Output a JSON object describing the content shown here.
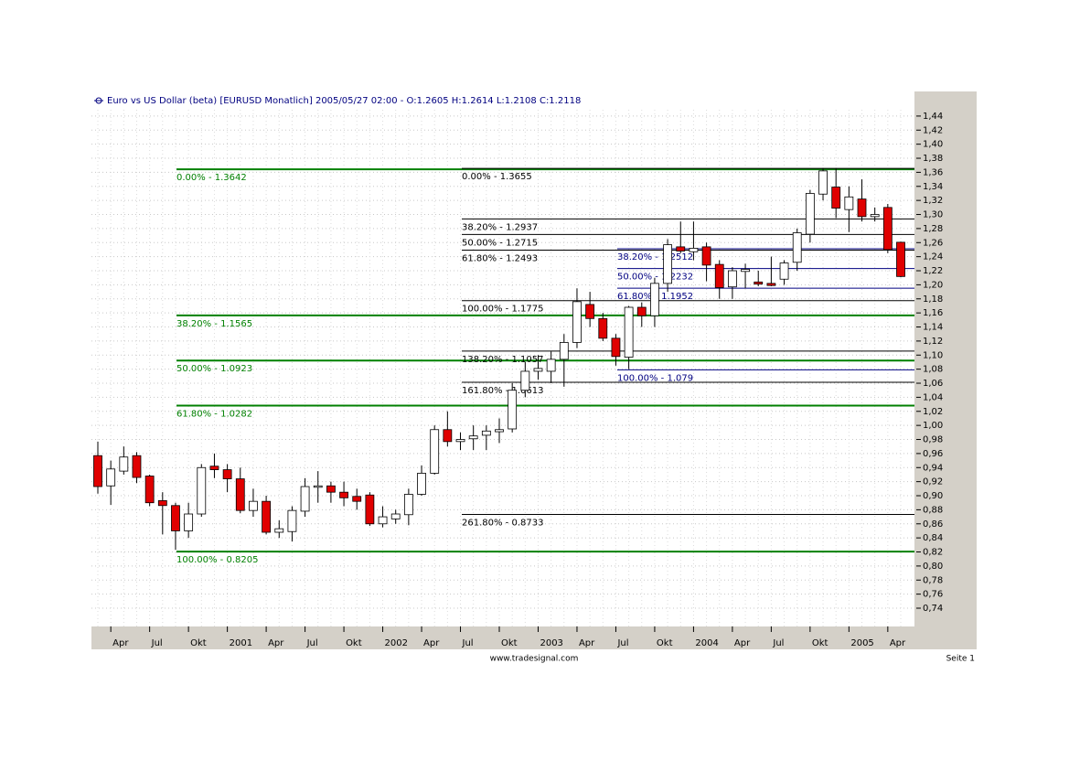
{
  "chart_data": {
    "type": "candlestick",
    "title": "Euro vs US Dollar (beta) [EURUSD  Monatlich] 2005/05/27 02:00 - O:1.2605 H:1.2614 L:1.2108 C:1.2118",
    "categories": [
      null,
      "Apr",
      null,
      null,
      "Jul",
      null,
      null,
      "Okt",
      null,
      null,
      "2001",
      null,
      null,
      "Apr",
      null,
      null,
      "Jul",
      null,
      null,
      "Okt",
      null,
      null,
      "2002",
      null,
      null,
      "Apr",
      null,
      null,
      "Jul",
      null,
      null,
      "Okt",
      null,
      null,
      "2003",
      null,
      null,
      "Apr",
      null,
      null,
      "Jul",
      null,
      null,
      "Okt",
      null,
      null,
      "2004",
      null,
      null,
      "Apr",
      null,
      null,
      "Jul",
      null,
      null,
      "Okt",
      null,
      null,
      "2005",
      null,
      null,
      "Apr",
      null
    ],
    "open": [
      0.957,
      0.914,
      0.935,
      0.957,
      0.928,
      0.893,
      0.886,
      0.85,
      0.874,
      0.942,
      0.937,
      0.924,
      0.879,
      0.892,
      0.848,
      0.849,
      0.878,
      0.912,
      0.914,
      0.905,
      0.899,
      0.901,
      0.86,
      0.867,
      0.873,
      0.902,
      0.932,
      0.994,
      0.977,
      0.981,
      0.986,
      0.991,
      0.995,
      1.05,
      1.077,
      1.077,
      1.094,
      1.118,
      1.172,
      1.152,
      1.124,
      1.097,
      1.168,
      1.156,
      1.202,
      1.254,
      1.247,
      1.254,
      1.229,
      1.197,
      1.219,
      1.204,
      1.202,
      1.208,
      1.232,
      1.272,
      1.329,
      1.339,
      1.307,
      1.322,
      1.297,
      1.31,
      1.2605
    ],
    "high": [
      0.977,
      0.95,
      0.97,
      0.962,
      0.93,
      0.905,
      0.89,
      0.89,
      0.945,
      0.96,
      0.945,
      0.94,
      0.91,
      0.9,
      0.865,
      0.885,
      0.925,
      0.935,
      0.92,
      0.92,
      0.91,
      0.905,
      0.885,
      0.88,
      0.91,
      0.943,
      1.0,
      1.02,
      0.99,
      1.0,
      1.0,
      1.01,
      1.06,
      1.09,
      1.1,
      1.105,
      1.13,
      1.195,
      1.19,
      1.16,
      1.13,
      1.17,
      1.175,
      1.21,
      1.265,
      1.29,
      1.29,
      1.26,
      1.235,
      1.225,
      1.23,
      1.22,
      1.24,
      1.235,
      1.28,
      1.335,
      1.366,
      1.366,
      1.34,
      1.35,
      1.31,
      1.315,
      1.2614
    ],
    "low": [
      0.903,
      0.887,
      0.93,
      0.918,
      0.885,
      0.845,
      0.823,
      0.84,
      0.87,
      0.925,
      0.905,
      0.875,
      0.87,
      0.845,
      0.84,
      0.835,
      0.87,
      0.89,
      0.89,
      0.885,
      0.88,
      0.857,
      0.855,
      0.86,
      0.858,
      0.9,
      0.93,
      0.97,
      0.965,
      0.965,
      0.965,
      0.975,
      0.99,
      1.04,
      1.065,
      1.06,
      1.055,
      1.11,
      1.14,
      1.12,
      1.085,
      1.08,
      1.14,
      1.14,
      1.19,
      1.245,
      1.235,
      1.205,
      1.18,
      1.18,
      1.195,
      1.198,
      1.198,
      1.2,
      1.22,
      1.26,
      1.32,
      1.295,
      1.275,
      1.29,
      1.29,
      1.245,
      1.2108
    ],
    "close": [
      0.913,
      0.938,
      0.955,
      0.926,
      0.89,
      0.886,
      0.85,
      0.874,
      0.94,
      0.937,
      0.924,
      0.879,
      0.892,
      0.848,
      0.853,
      0.879,
      0.913,
      0.914,
      0.905,
      0.897,
      0.892,
      0.86,
      0.87,
      0.874,
      0.902,
      0.932,
      0.994,
      0.977,
      0.98,
      0.985,
      0.992,
      0.994,
      1.05,
      1.077,
      1.081,
      1.094,
      1.118,
      1.176,
      1.152,
      1.124,
      1.098,
      1.168,
      1.156,
      1.202,
      1.257,
      1.248,
      1.252,
      1.228,
      1.196,
      1.22,
      1.222,
      1.201,
      1.199,
      1.231,
      1.274,
      1.33,
      1.362,
      1.309,
      1.325,
      1.297,
      1.3,
      1.25,
      1.2118
    ],
    "up_color": "#ffffff",
    "down_color": "#e00000",
    "ylim": [
      0.714,
      1.475
    ],
    "yticks": [
      {
        "value": 1.44,
        "label": "1,44"
      },
      {
        "value": 1.42,
        "label": "1,42"
      },
      {
        "value": 1.4,
        "label": "1,40"
      },
      {
        "value": 1.38,
        "label": "1,38"
      },
      {
        "value": 1.36,
        "label": "1,36"
      },
      {
        "value": 1.34,
        "label": "1,34"
      },
      {
        "value": 1.32,
        "label": "1,32"
      },
      {
        "value": 1.3,
        "label": "1,30"
      },
      {
        "value": 1.28,
        "label": "1,28"
      },
      {
        "value": 1.26,
        "label": "1,26"
      },
      {
        "value": 1.24,
        "label": "1,24"
      },
      {
        "value": 1.22,
        "label": "1,22"
      },
      {
        "value": 1.2,
        "label": "1,20"
      },
      {
        "value": 1.18,
        "label": "1,18"
      },
      {
        "value": 1.16,
        "label": "1,16"
      },
      {
        "value": 1.14,
        "label": "1,14"
      },
      {
        "value": 1.12,
        "label": "1,12"
      },
      {
        "value": 1.1,
        "label": "1,10"
      },
      {
        "value": 1.08,
        "label": "1,08"
      },
      {
        "value": 1.06,
        "label": "1,06"
      },
      {
        "value": 1.04,
        "label": "1,04"
      },
      {
        "value": 1.02,
        "label": "1,02"
      },
      {
        "value": 1.0,
        "label": "1,00"
      },
      {
        "value": 0.98,
        "label": "0,98"
      },
      {
        "value": 0.96,
        "label": "0,96"
      },
      {
        "value": 0.94,
        "label": "0,94"
      },
      {
        "value": 0.92,
        "label": "0,92"
      },
      {
        "value": 0.9,
        "label": "0,90"
      },
      {
        "value": 0.88,
        "label": "0,88"
      },
      {
        "value": 0.86,
        "label": "0,86"
      },
      {
        "value": 0.84,
        "label": "0,84"
      },
      {
        "value": 0.82,
        "label": "0,82"
      },
      {
        "value": 0.8,
        "label": "0,80"
      },
      {
        "value": 0.78,
        "label": "0,78"
      },
      {
        "value": 0.76,
        "label": "0,76"
      },
      {
        "value": 0.74,
        "label": "0,74"
      }
    ],
    "grid": true,
    "fibonacci": [
      {
        "color": "#008000",
        "values": [
          1.3642,
          1.1565,
          1.0923,
          1.0282,
          0.8205
        ],
        "value_labels": [
          "0.00% - 1.3642",
          "38.20% - 1.1565",
          "50.00% - 1.0923",
          "61.80% - 1.0282",
          "100.00% - 0.8205"
        ]
      },
      {
        "color": "#000000",
        "values": [
          1.3655,
          1.2937,
          1.2715,
          1.2493,
          1.1775,
          1.1057,
          1.0613,
          0.8733
        ],
        "value_labels": [
          "0.00% - 1.3655",
          "38.20% - 1.2937",
          "50.00% - 1.2715",
          "61.80% - 1.2493",
          "100.00% - 1.1775",
          "138.20% - 1.1057",
          "161.80% - 1.0613",
          "261.80% - 0.8733"
        ]
      },
      {
        "color": "#000080",
        "values": [
          1.2512,
          1.2232,
          1.1952,
          1.079
        ],
        "value_labels": [
          "38.20% - 1.2512",
          "50.00% - 1.2232",
          "61.80% - 1.1952",
          "100.00% - 1.079"
        ]
      }
    ]
  },
  "footer": {
    "source": "www.tradesignal.com",
    "page": "Seite 1"
  }
}
